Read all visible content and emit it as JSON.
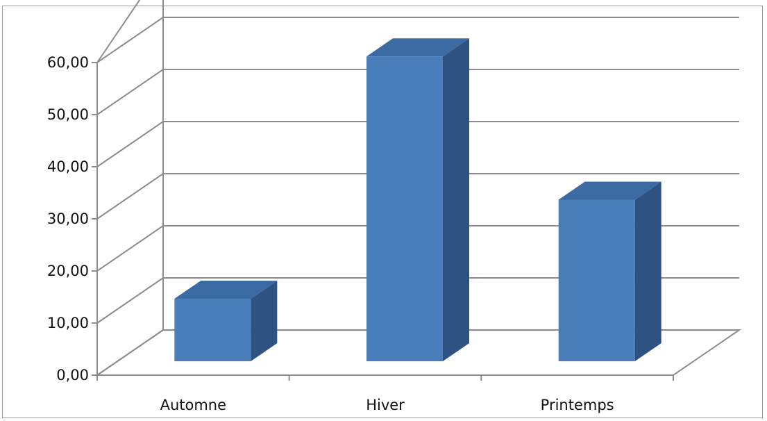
{
  "chart_data": {
    "type": "bar",
    "style": "3d-column",
    "categories": [
      "Automne",
      "Hiver",
      "Printemps"
    ],
    "values": [
      12.0,
      58.5,
      31.0
    ],
    "ylim": [
      0,
      60
    ],
    "yticks": [
      "0,00",
      "10,00",
      "20,00",
      "30,00",
      "40,00",
      "50,00",
      "60,00"
    ],
    "grid": true,
    "legend": "none",
    "colors": {
      "front": "#4a7ebb",
      "top": "#3c6ba3",
      "side": "#2e5282"
    }
  }
}
